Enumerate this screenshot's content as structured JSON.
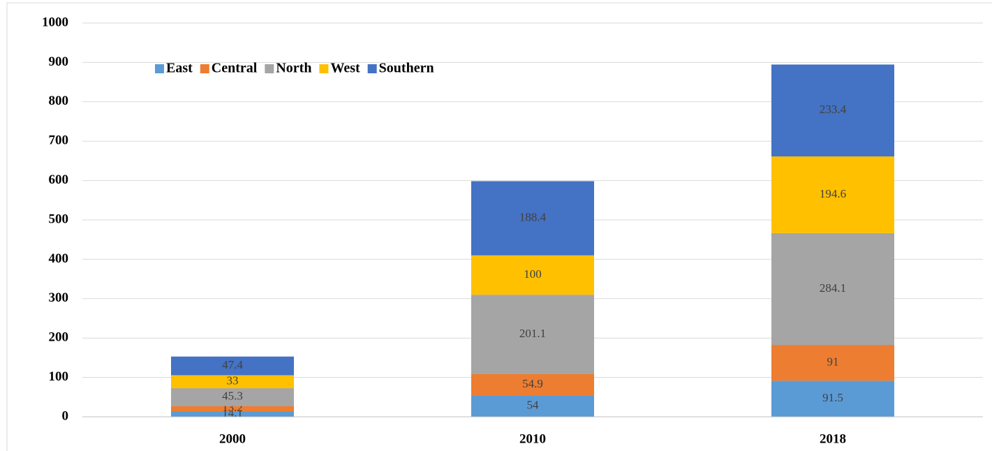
{
  "chart_data": {
    "type": "stacked_bar",
    "categories": [
      "2000",
      "2010",
      "2018"
    ],
    "series": [
      {
        "name": "East",
        "color": "#5b9bd5",
        "values": [
          14.1,
          54,
          91.5
        ]
      },
      {
        "name": "Central",
        "color": "#ed7d31",
        "values": [
          13.2,
          54.9,
          91
        ]
      },
      {
        "name": "North",
        "color": "#a5a5a5",
        "values": [
          45.3,
          201.1,
          284.1
        ]
      },
      {
        "name": "West",
        "color": "#ffc000",
        "values": [
          33,
          100,
          194.6
        ]
      },
      {
        "name": "Southern",
        "color": "#4472c4",
        "values": [
          47.4,
          188.4,
          233.4
        ]
      }
    ],
    "ylim": [
      0,
      1000
    ],
    "yticks": [
      0,
      100,
      200,
      300,
      400,
      500,
      600,
      700,
      800,
      900,
      1000
    ],
    "grid": true,
    "legend": "top-left"
  }
}
